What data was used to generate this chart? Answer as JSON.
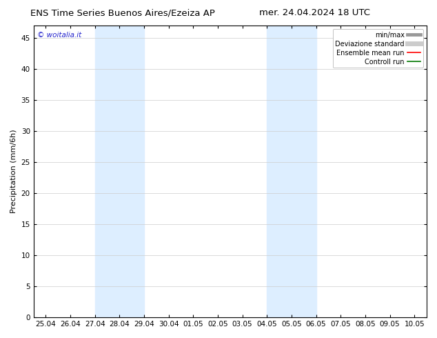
{
  "title_left": "ENS Time Series Buenos Aires/Ezeiza AP",
  "title_right": "mer. 24.04.2024 18 UTC",
  "ylabel": "Precipitation (mm/6h)",
  "watermark": "© woitalia.it",
  "ylim": [
    0,
    47
  ],
  "yticks": [
    0,
    5,
    10,
    15,
    20,
    25,
    30,
    35,
    40,
    45
  ],
  "xtick_labels": [
    "25.04",
    "26.04",
    "27.04",
    "28.04",
    "29.04",
    "30.04",
    "01.05",
    "02.05",
    "03.05",
    "04.05",
    "05.05",
    "06.05",
    "07.05",
    "08.05",
    "09.05",
    "10.05"
  ],
  "shade_bands": [
    {
      "xstart": 2.0,
      "xend": 4.0
    },
    {
      "xstart": 9.0,
      "xend": 11.0
    }
  ],
  "shade_color": "#ddeeff",
  "bg_color": "#ffffff",
  "grid_color": "#cccccc",
  "legend_items": [
    {
      "label": "min/max",
      "color": "#999999",
      "lw": 3.5,
      "style": "-"
    },
    {
      "label": "Deviazione standard",
      "color": "#cccccc",
      "lw": 5,
      "style": "-"
    },
    {
      "label": "Ensemble mean run",
      "color": "#ff0000",
      "lw": 1.2,
      "style": "-"
    },
    {
      "label": "Controll run",
      "color": "#007700",
      "lw": 1.2,
      "style": "-"
    }
  ],
  "title_fontsize": 9.5,
  "axis_fontsize": 8,
  "tick_fontsize": 7.5,
  "legend_fontsize": 7,
  "watermark_color": "#2222cc",
  "border_color": "#000000"
}
